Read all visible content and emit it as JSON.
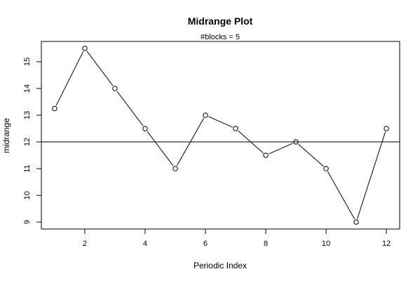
{
  "chart_data": {
    "type": "line",
    "title": "Midrange Plot",
    "subtitle": "#blocks =  5",
    "xlabel": "Periodic Index",
    "ylabel": "midrange",
    "x": [
      1,
      2,
      3,
      4,
      5,
      6,
      7,
      8,
      9,
      10,
      11,
      12
    ],
    "y": [
      13.25,
      15.5,
      14.0,
      12.5,
      11.0,
      13.0,
      12.5,
      11.5,
      12.0,
      11.0,
      9.0,
      12.5
    ],
    "xlim": [
      0.56,
      12.44
    ],
    "ylim": [
      8.74,
      15.76
    ],
    "xticks": [
      2,
      4,
      6,
      8,
      10,
      12
    ],
    "yticks": [
      9,
      10,
      11,
      12,
      13,
      14,
      15
    ],
    "reference_line": 12,
    "marker": "open-circle",
    "grid": false,
    "line_color": "#000000"
  }
}
